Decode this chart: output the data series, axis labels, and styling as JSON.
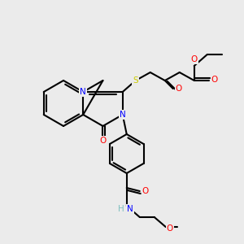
{
  "bg_color": "#ebebeb",
  "bond_color": "#000000",
  "bond_width": 1.5,
  "atom_colors": {
    "N": "#0000ff",
    "O": "#ff0000",
    "S": "#cccc00",
    "H": "#7fbfbf",
    "C": "#000000"
  },
  "font_size": 7.5
}
